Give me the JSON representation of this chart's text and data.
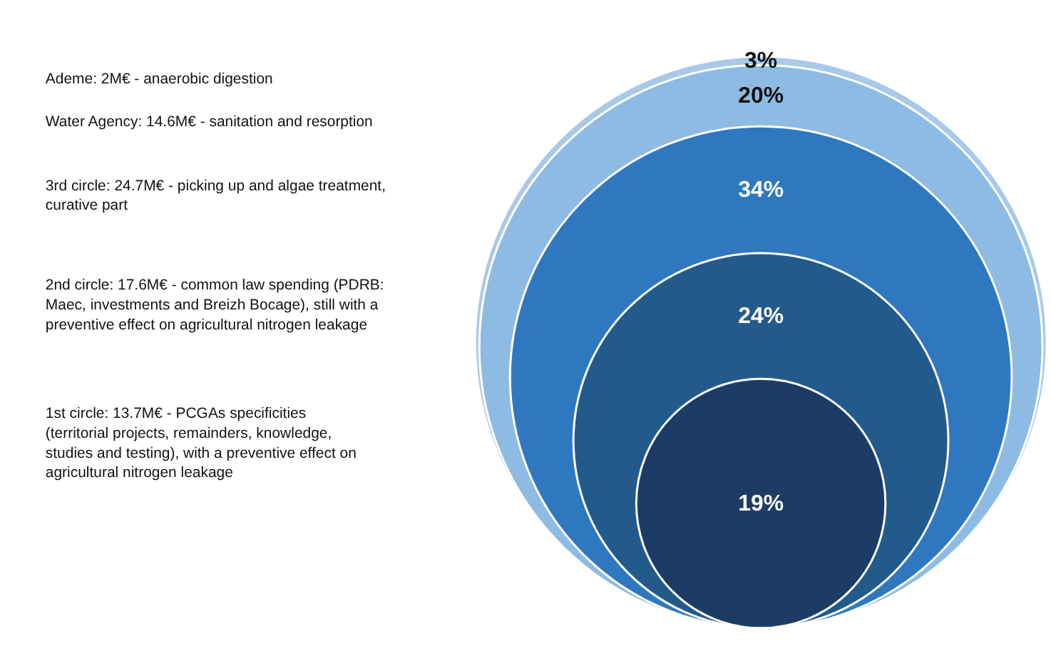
{
  "chart_data": {
    "type": "other",
    "categories": [
      null,
      null,
      null,
      null,
      null
    ],
    "values": [
      3,
      20,
      34,
      24,
      19
    ],
    "value_labels": [
      "3%",
      "20%",
      "34%",
      "24%",
      "19%"
    ],
    "colors": [
      "#a9c9ea",
      "#8dbbe3",
      "#2f78c0",
      "#235a8c",
      "#1c3c66"
    ],
    "annotations": [
      "Ademe: 2M€ - anaerobic digestion",
      "Water Agency: 14.6M€ - sanitation and resorption",
      "3rd circle: 24.7M€ - picking up and algae treatment, curative part",
      "2nd circle: 17.6M€ - common law spending (PDRB: Maec, investments and Breizh Bocage), still with a preventive effect on agricultural nitrogen leakage",
      "1st circle: 13.7M€ - PCGAs specificities (territorial projects, remainders, knowledge, studies and testing), with a preventive effect on agricultural nitrogen leakage"
    ]
  }
}
